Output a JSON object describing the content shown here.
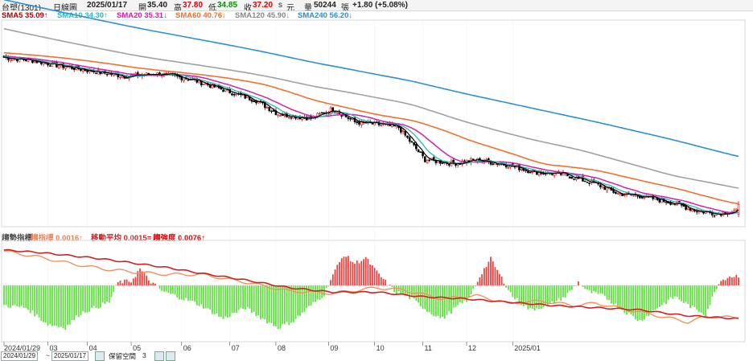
{
  "infobar": {
    "stock": "台塑(1301)",
    "period": "日線圖",
    "date": "2025/01/17",
    "open_label": "開",
    "open": "35.40",
    "high_label": "高",
    "high": "37.80",
    "low_label": "低",
    "low": "34.85",
    "close_label": "收",
    "close": "37.20",
    "s_mark": "s",
    "unit": "元",
    "vol_label": "量",
    "vol": "50244",
    "vol_unit": "張",
    "change": "+1.80 (+5.08%)"
  },
  "legend_top": [
    {
      "label": "SMA5 35.09",
      "arrow": "↑",
      "color": "#b00000"
    },
    {
      "label": "SMA10 34.30",
      "arrow": "↑",
      "color": "#2ab8b8"
    },
    {
      "label": "SMA20 35.31",
      "arrow": "↓",
      "color": "#d020b0"
    },
    {
      "label": "SMA60 40.76",
      "arrow": "↓",
      "color": "#f07030"
    },
    {
      "label": "SMA120 45.90",
      "arrow": "↓",
      "color": "#888888"
    },
    {
      "label": "SMA240 56.20",
      "arrow": "↓",
      "color": "#2a90d0"
    }
  ],
  "legend_bottom": [
    {
      "label": "趨勢指標",
      "color": "#444444"
    },
    {
      "label": "趨指標 0.0016",
      "arrow": "↑",
      "color": "#f08050"
    },
    {
      "label": "移動平均 0.0015",
      "arrow": "=",
      "color": "#d02020"
    },
    {
      "label": "趨強度 0.0076",
      "arrow": "↑",
      "color": "#e00000"
    }
  ],
  "colors": {
    "up_candle": "#e00000",
    "down_candle": "#000000",
    "sma5": "#000000",
    "sma10": "#2ab8b8",
    "sma20": "#d020b0",
    "sma60": "#f07030",
    "sma120": "#a0a0a0",
    "sma240": "#2a90d0",
    "hist_pos": "#f04040",
    "hist_neg": "#60e040",
    "osc_line": "#d02020",
    "osc_ma": "#f09060"
  },
  "chart_data": [
    {
      "type": "candlestick",
      "title": "台塑(1301) 日線圖",
      "ylim": [
        33.5,
        71.0
      ],
      "x_axis_ticks": [
        "2024/01/29",
        "03",
        "04",
        "05",
        "06",
        "07",
        "08",
        "09",
        "10",
        "11",
        "12",
        "2025/01"
      ],
      "last_bar": {
        "date": "2025/01/17",
        "open": 35.4,
        "high": 37.8,
        "low": 34.85,
        "close": 37.2
      },
      "close_anchors": [
        [
          0,
          64.5
        ],
        [
          12,
          64.0
        ],
        [
          25,
          63.0
        ],
        [
          40,
          62.0
        ],
        [
          55,
          61.0
        ],
        [
          70,
          61.5
        ],
        [
          85,
          60.5
        ],
        [
          100,
          58.5
        ],
        [
          115,
          56.5
        ],
        [
          125,
          54.0
        ],
        [
          140,
          53.2
        ],
        [
          150,
          55.0
        ],
        [
          160,
          52.5
        ],
        [
          172,
          52.0
        ],
        [
          180,
          51.5
        ],
        [
          192,
          45.5
        ],
        [
          205,
          44.8
        ],
        [
          215,
          45.5
        ],
        [
          230,
          44.5
        ],
        [
          242,
          43.2
        ],
        [
          255,
          42.8
        ],
        [
          270,
          41.0
        ],
        [
          280,
          39.2
        ],
        [
          290,
          38.8
        ],
        [
          305,
          37.5
        ],
        [
          316,
          36.0
        ],
        [
          325,
          35.5
        ],
        [
          335,
          36.0
        ]
      ],
      "series": [
        {
          "name": "SMA5",
          "final": 35.09,
          "trend": "up"
        },
        {
          "name": "SMA10",
          "final": 34.3,
          "trend": "up"
        },
        {
          "name": "SMA20",
          "final": 35.31,
          "trend": "down"
        },
        {
          "name": "SMA60",
          "final": 40.76,
          "trend": "down"
        },
        {
          "name": "SMA120",
          "final": 45.9,
          "trend": "down"
        },
        {
          "name": "SMA240",
          "final": 56.2,
          "trend": "down"
        }
      ]
    },
    {
      "type": "bar",
      "title": "趨勢指標",
      "ylim": [
        -0.05,
        0.04
      ],
      "series": [
        {
          "name": "趨指標",
          "final": 0.0016,
          "trend": "up"
        },
        {
          "name": "移動平均",
          "final": 0.0015,
          "trend": "flat"
        },
        {
          "name": "趨強度",
          "final": 0.0076,
          "trend": "up"
        }
      ],
      "histogram_anchors": [
        [
          0,
          -0.018
        ],
        [
          10,
          -0.02
        ],
        [
          20,
          -0.035
        ],
        [
          28,
          -0.038
        ],
        [
          35,
          -0.025
        ],
        [
          48,
          -0.015
        ],
        [
          52,
          0.003
        ],
        [
          58,
          0.004
        ],
        [
          62,
          0.015
        ],
        [
          66,
          0.005
        ],
        [
          72,
          -0.005
        ],
        [
          82,
          -0.012
        ],
        [
          90,
          -0.018
        ],
        [
          100,
          -0.03
        ],
        [
          110,
          -0.02
        ],
        [
          118,
          -0.03
        ],
        [
          125,
          -0.038
        ],
        [
          132,
          -0.032
        ],
        [
          140,
          -0.018
        ],
        [
          146,
          -0.008
        ],
        [
          150,
          0.01
        ],
        [
          155,
          0.028
        ],
        [
          160,
          0.02
        ],
        [
          165,
          0.025
        ],
        [
          170,
          0.012
        ],
        [
          178,
          -0.005
        ],
        [
          186,
          -0.012
        ],
        [
          194,
          -0.024
        ],
        [
          200,
          -0.03
        ],
        [
          206,
          -0.02
        ],
        [
          212,
          -0.012
        ],
        [
          218,
          0.012
        ],
        [
          222,
          0.024
        ],
        [
          226,
          0.01
        ],
        [
          232,
          -0.01
        ],
        [
          240,
          -0.022
        ],
        [
          248,
          -0.018
        ],
        [
          256,
          -0.01
        ],
        [
          262,
          0.003
        ],
        [
          266,
          -0.005
        ],
        [
          274,
          -0.01
        ],
        [
          282,
          -0.022
        ],
        [
          290,
          -0.032
        ],
        [
          298,
          -0.02
        ],
        [
          306,
          -0.01
        ],
        [
          314,
          -0.02
        ],
        [
          320,
          -0.026
        ],
        [
          326,
          0.003
        ],
        [
          330,
          0.008
        ],
        [
          335,
          0.009
        ]
      ],
      "line_anchors": [
        [
          0,
          0.032
        ],
        [
          15,
          0.03
        ],
        [
          30,
          0.027
        ],
        [
          45,
          0.024
        ],
        [
          60,
          0.02
        ],
        [
          75,
          0.016
        ],
        [
          90,
          0.011
        ],
        [
          110,
          0.005
        ],
        [
          130,
          -0.002
        ],
        [
          150,
          -0.006
        ],
        [
          170,
          -0.006
        ],
        [
          190,
          -0.01
        ],
        [
          210,
          -0.012
        ],
        [
          230,
          -0.015
        ],
        [
          250,
          -0.018
        ],
        [
          270,
          -0.02
        ],
        [
          290,
          -0.022
        ],
        [
          310,
          -0.027
        ],
        [
          335,
          -0.03
        ]
      ],
      "ma_anchors": [
        [
          0,
          0.031
        ],
        [
          15,
          0.026
        ],
        [
          30,
          0.02
        ],
        [
          45,
          0.015
        ],
        [
          60,
          0.012
        ],
        [
          75,
          0.01
        ],
        [
          90,
          0.01
        ],
        [
          110,
          0.003
        ],
        [
          130,
          -0.005
        ],
        [
          150,
          -0.007
        ],
        [
          170,
          -0.002
        ],
        [
          182,
          -0.004
        ],
        [
          200,
          -0.012
        ],
        [
          215,
          -0.009
        ],
        [
          230,
          -0.016
        ],
        [
          245,
          -0.014
        ],
        [
          260,
          -0.018
        ],
        [
          270,
          -0.016
        ],
        [
          285,
          -0.022
        ],
        [
          300,
          -0.028
        ],
        [
          312,
          -0.033
        ],
        [
          320,
          -0.028
        ],
        [
          335,
          -0.029
        ]
      ]
    }
  ],
  "footer": {
    "start_date": "2024/01/29",
    "range_sep": "~",
    "end_date": "2025/01/17",
    "keep_label": "保留空間",
    "keep_value": "3"
  }
}
